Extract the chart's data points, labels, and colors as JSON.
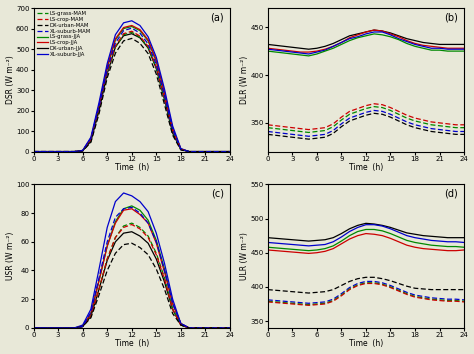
{
  "colors": {
    "green": "#008800",
    "red": "#cc0000",
    "black": "#000000",
    "blue": "#0000cc"
  },
  "time": [
    0,
    1,
    2,
    3,
    4,
    5,
    6,
    7,
    8,
    9,
    10,
    11,
    12,
    13,
    14,
    15,
    16,
    17,
    18,
    19,
    20,
    21,
    22,
    23,
    24
  ],
  "bg_color": "#e8e8d8",
  "panel_a": {
    "ylabel": "DSR (W m⁻²)",
    "xlabel": "Time  (h)",
    "ylim": [
      0,
      700
    ],
    "yticks": [
      0,
      100,
      200,
      300,
      400,
      500,
      600,
      700
    ],
    "xticks": [
      0,
      3,
      6,
      9,
      12,
      15,
      18,
      21,
      24
    ],
    "JJA_grass": [
      0,
      0,
      0,
      0,
      0,
      0,
      5,
      60,
      220,
      410,
      545,
      600,
      610,
      590,
      540,
      440,
      285,
      110,
      12,
      0,
      0,
      0,
      0,
      0,
      0
    ],
    "JJA_crop": [
      0,
      0,
      0,
      0,
      0,
      0,
      5,
      62,
      225,
      415,
      550,
      605,
      615,
      595,
      545,
      445,
      290,
      113,
      13,
      0,
      0,
      0,
      0,
      0,
      0
    ],
    "JJA_urban": [
      0,
      0,
      0,
      0,
      0,
      0,
      4,
      50,
      200,
      380,
      510,
      565,
      575,
      555,
      505,
      405,
      255,
      90,
      10,
      0,
      0,
      0,
      0,
      0,
      0
    ],
    "JJA_suburb": [
      0,
      0,
      0,
      0,
      0,
      0,
      6,
      70,
      240,
      430,
      570,
      628,
      638,
      615,
      560,
      460,
      305,
      125,
      15,
      0,
      0,
      0,
      0,
      0,
      0
    ],
    "MAM_grass": [
      0,
      0,
      0,
      0,
      0,
      0,
      4,
      55,
      205,
      385,
      510,
      570,
      582,
      558,
      508,
      408,
      258,
      100,
      10,
      0,
      0,
      0,
      0,
      0,
      0
    ],
    "MAM_crop": [
      0,
      0,
      0,
      0,
      0,
      0,
      4,
      57,
      210,
      390,
      515,
      575,
      587,
      563,
      513,
      413,
      263,
      103,
      11,
      0,
      0,
      0,
      0,
      0,
      0
    ],
    "MAM_urban": [
      0,
      0,
      0,
      0,
      0,
      0,
      3,
      45,
      185,
      360,
      480,
      540,
      552,
      528,
      478,
      378,
      230,
      80,
      8,
      0,
      0,
      0,
      0,
      0,
      0
    ],
    "MAM_suburb": [
      0,
      0,
      0,
      0,
      0,
      0,
      5,
      65,
      220,
      400,
      530,
      590,
      602,
      578,
      525,
      425,
      273,
      108,
      12,
      0,
      0,
      0,
      0,
      0,
      0
    ]
  },
  "panel_b": {
    "ylabel": "DLR (W m⁻²)",
    "xlabel": "Time  (h)",
    "ylim": [
      320,
      470
    ],
    "yticks": [
      350,
      400,
      450
    ],
    "xticks": [
      0,
      3,
      6,
      9,
      12,
      15,
      18,
      21,
      24
    ],
    "JJA_black": [
      432,
      431,
      430,
      429,
      428,
      427,
      428,
      430,
      433,
      437,
      441,
      443,
      445,
      447,
      446,
      444,
      441,
      438,
      436,
      434,
      433,
      432,
      432,
      432,
      432
    ],
    "JJA_red": [
      428,
      427,
      426,
      425,
      424,
      424,
      425,
      427,
      430,
      434,
      439,
      442,
      445,
      447,
      446,
      443,
      440,
      436,
      433,
      431,
      430,
      429,
      428,
      428,
      428
    ],
    "JJA_blue": [
      427,
      426,
      425,
      424,
      423,
      422,
      424,
      426,
      430,
      434,
      438,
      440,
      443,
      445,
      445,
      442,
      438,
      435,
      432,
      430,
      428,
      428,
      427,
      427,
      427
    ],
    "JJA_green": [
      425,
      424,
      423,
      422,
      421,
      420,
      422,
      425,
      428,
      432,
      436,
      439,
      441,
      443,
      442,
      440,
      437,
      433,
      430,
      428,
      426,
      426,
      425,
      425,
      425
    ],
    "MAM_red": [
      348,
      347,
      346,
      345,
      344,
      343,
      344,
      345,
      349,
      356,
      362,
      365,
      368,
      370,
      369,
      366,
      362,
      358,
      355,
      353,
      351,
      350,
      349,
      348,
      348
    ],
    "MAM_green": [
      345,
      344,
      343,
      342,
      341,
      340,
      341,
      342,
      346,
      353,
      359,
      362,
      365,
      367,
      366,
      363,
      359,
      355,
      352,
      350,
      348,
      347,
      346,
      345,
      345
    ],
    "MAM_blue": [
      341,
      340,
      339,
      338,
      337,
      336,
      337,
      338,
      342,
      349,
      355,
      358,
      361,
      363,
      362,
      359,
      355,
      351,
      348,
      346,
      344,
      343,
      342,
      341,
      341
    ],
    "MAM_black": [
      338,
      337,
      336,
      335,
      334,
      333,
      334,
      335,
      339,
      346,
      352,
      355,
      358,
      360,
      359,
      356,
      352,
      348,
      345,
      343,
      341,
      340,
      339,
      338,
      338
    ]
  },
  "panel_c": {
    "ylabel": "USR (W m⁻²)",
    "xlabel": "Time  (h)",
    "ylim": [
      0,
      100
    ],
    "yticks": [
      0,
      20,
      40,
      60,
      80,
      100
    ],
    "xticks": [
      0,
      3,
      6,
      9,
      12,
      15,
      18,
      21,
      24
    ],
    "JJA_green": [
      0,
      0,
      0,
      0,
      0,
      0,
      1,
      10,
      33,
      57,
      74,
      83,
      85,
      82,
      75,
      61,
      41,
      17,
      3,
      0,
      0,
      0,
      0,
      0,
      0
    ],
    "JJA_red": [
      0,
      0,
      0,
      0,
      0,
      0,
      1,
      10,
      33,
      57,
      73,
      82,
      83,
      79,
      73,
      59,
      39,
      17,
      3,
      0,
      0,
      0,
      0,
      0,
      0
    ],
    "JJA_black": [
      0,
      0,
      0,
      0,
      0,
      0,
      1,
      8,
      27,
      47,
      60,
      66,
      67,
      64,
      59,
      48,
      32,
      13,
      2,
      0,
      0,
      0,
      0,
      0,
      0
    ],
    "JJA_blue": [
      0,
      0,
      0,
      0,
      0,
      0,
      2,
      13,
      41,
      70,
      88,
      94,
      92,
      88,
      81,
      66,
      45,
      20,
      3,
      0,
      0,
      0,
      0,
      0,
      0
    ],
    "MAM_green": [
      0,
      0,
      0,
      0,
      0,
      0,
      1,
      8,
      27,
      48,
      63,
      71,
      73,
      70,
      64,
      52,
      35,
      13,
      2,
      0,
      0,
      0,
      0,
      0,
      0
    ],
    "MAM_red": [
      0,
      0,
      0,
      0,
      0,
      0,
      1,
      8,
      27,
      48,
      63,
      70,
      72,
      69,
      63,
      51,
      34,
      13,
      2,
      0,
      0,
      0,
      0,
      0,
      0
    ],
    "MAM_black": [
      0,
      0,
      0,
      0,
      0,
      0,
      1,
      7,
      23,
      40,
      52,
      58,
      59,
      56,
      51,
      41,
      27,
      10,
      2,
      0,
      0,
      0,
      0,
      0,
      0
    ],
    "MAM_blue": [
      0,
      0,
      0,
      0,
      0,
      0,
      1,
      11,
      35,
      60,
      77,
      83,
      84,
      80,
      73,
      60,
      40,
      17,
      3,
      0,
      0,
      0,
      0,
      0,
      0
    ]
  },
  "panel_d": {
    "ylabel": "ULR (W m⁻²)",
    "xlabel": "Time  (h)",
    "ylim": [
      340,
      550
    ],
    "yticks": [
      350,
      400,
      450,
      500,
      550
    ],
    "xticks": [
      0,
      3,
      6,
      9,
      12,
      15,
      18,
      21,
      24
    ],
    "JJA_black": [
      472,
      471,
      470,
      469,
      468,
      467,
      468,
      469,
      472,
      478,
      485,
      490,
      493,
      492,
      490,
      487,
      483,
      479,
      477,
      475,
      474,
      473,
      472,
      472,
      472
    ],
    "JJA_blue": [
      465,
      464,
      463,
      462,
      461,
      460,
      461,
      462,
      466,
      473,
      481,
      487,
      491,
      491,
      489,
      485,
      480,
      475,
      472,
      470,
      468,
      467,
      466,
      466,
      465
    ],
    "JJA_green": [
      458,
      457,
      456,
      455,
      454,
      453,
      454,
      456,
      460,
      467,
      475,
      481,
      484,
      484,
      482,
      478,
      473,
      468,
      465,
      463,
      461,
      460,
      459,
      459,
      458
    ],
    "JJA_red": [
      454,
      453,
      452,
      451,
      450,
      449,
      450,
      452,
      456,
      463,
      470,
      475,
      478,
      477,
      475,
      471,
      466,
      461,
      458,
      456,
      455,
      454,
      453,
      453,
      454
    ],
    "MAM_black": [
      396,
      395,
      394,
      393,
      392,
      391,
      392,
      393,
      396,
      402,
      408,
      412,
      414,
      414,
      412,
      409,
      405,
      401,
      398,
      397,
      396,
      396,
      396,
      396,
      396
    ],
    "MAM_blue": [
      381,
      380,
      379,
      378,
      377,
      376,
      377,
      378,
      382,
      390,
      399,
      405,
      408,
      408,
      406,
      402,
      397,
      392,
      388,
      386,
      384,
      383,
      382,
      382,
      381
    ],
    "MAM_green": [
      379,
      378,
      377,
      376,
      375,
      374,
      375,
      376,
      380,
      388,
      397,
      403,
      406,
      406,
      404,
      400,
      395,
      390,
      386,
      384,
      382,
      381,
      380,
      380,
      379
    ],
    "MAM_red": [
      378,
      377,
      376,
      375,
      374,
      373,
      374,
      375,
      379,
      387,
      396,
      402,
      405,
      405,
      403,
      399,
      394,
      389,
      385,
      383,
      381,
      380,
      379,
      379,
      378
    ]
  },
  "legend_labels_dashed": [
    "LS-grass-MAM",
    "LS-crop-MAM",
    "DX-urban-MAM",
    "XL-suburb-MAM"
  ],
  "legend_labels_solid": [
    "LS-grass-JJA",
    "LS-crop-JJA",
    "DX-urban-JJA",
    "XL-suburb-JJA"
  ]
}
